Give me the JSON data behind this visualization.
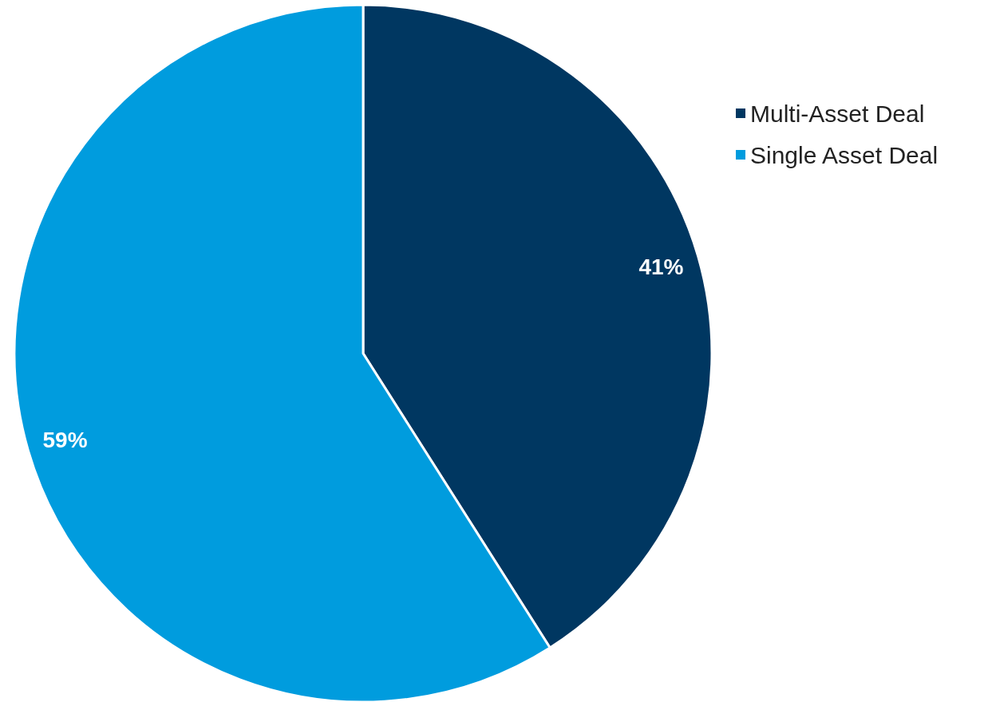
{
  "chart_data": {
    "type": "pie",
    "categories": [
      "Multi-Asset Deal",
      "Single Asset Deal"
    ],
    "values": [
      41,
      59
    ],
    "colors": [
      "#003761",
      "#009cde"
    ],
    "value_labels": [
      "41%",
      "59%"
    ],
    "legend": "top right"
  }
}
